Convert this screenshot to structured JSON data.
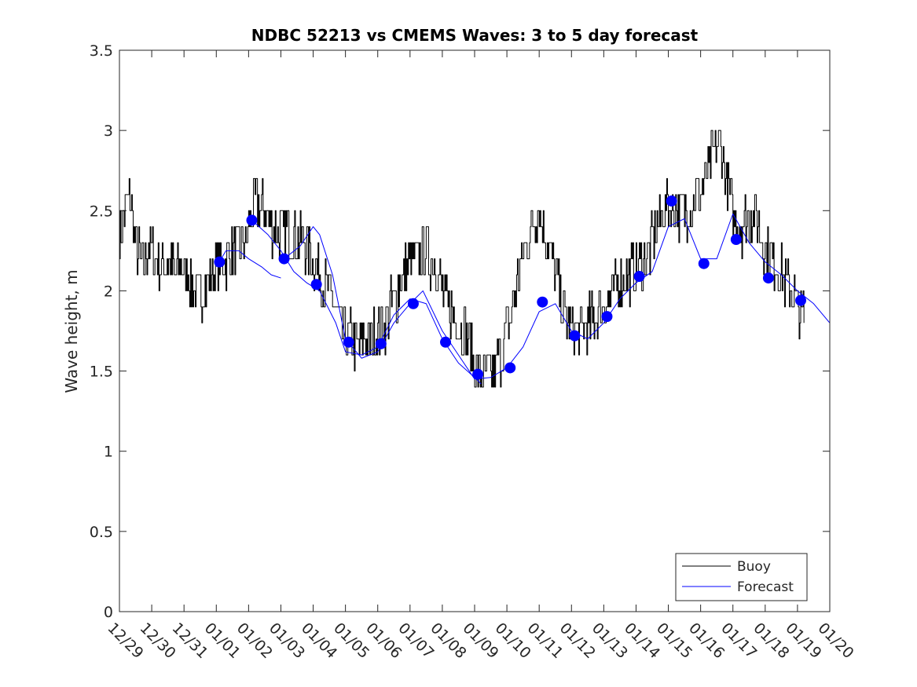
{
  "chart_data": {
    "type": "line",
    "title": "NDBC 52213 vs CMEMS Waves: 3 to 5 day forecast",
    "xlabel": "",
    "ylabel": "Wave height, m",
    "xlim": [
      0,
      22
    ],
    "ylim": [
      0,
      3.5
    ],
    "x_ticks": [
      {
        "x": 0,
        "label": "12/29"
      },
      {
        "x": 1,
        "label": "12/30"
      },
      {
        "x": 2,
        "label": "12/31"
      },
      {
        "x": 3,
        "label": "01/01"
      },
      {
        "x": 4,
        "label": "01/02"
      },
      {
        "x": 5,
        "label": "01/03"
      },
      {
        "x": 6,
        "label": "01/04"
      },
      {
        "x": 7,
        "label": "01/05"
      },
      {
        "x": 8,
        "label": "01/06"
      },
      {
        "x": 9,
        "label": "01/07"
      },
      {
        "x": 10,
        "label": "01/08"
      },
      {
        "x": 11,
        "label": "01/09"
      },
      {
        "x": 12,
        "label": "01/10"
      },
      {
        "x": 13,
        "label": "01/11"
      },
      {
        "x": 14,
        "label": "01/12"
      },
      {
        "x": 15,
        "label": "01/13"
      },
      {
        "x": 16,
        "label": "01/14"
      },
      {
        "x": 17,
        "label": "01/15"
      },
      {
        "x": 18,
        "label": "01/16"
      },
      {
        "x": 19,
        "label": "01/17"
      },
      {
        "x": 20,
        "label": "01/18"
      },
      {
        "x": 21,
        "label": "01/19"
      },
      {
        "x": 22,
        "label": "01/20"
      }
    ],
    "y_ticks": [
      {
        "y": 0,
        "label": "0"
      },
      {
        "y": 0.5,
        "label": "0.5"
      },
      {
        "y": 1,
        "label": "1"
      },
      {
        "y": 1.5,
        "label": "1.5"
      },
      {
        "y": 2,
        "label": "2"
      },
      {
        "y": 2.5,
        "label": "2.5"
      },
      {
        "y": 3,
        "label": "3"
      },
      {
        "y": 3.5,
        "label": "3.5"
      }
    ],
    "legend": {
      "position": "bottom-right",
      "entries": [
        "Buoy",
        "Forecast"
      ]
    },
    "colors": {
      "buoy": "#000000",
      "forecast": "#0000ff",
      "axis": "#262626"
    },
    "series": [
      {
        "name": "Buoy",
        "style": "noisy-step",
        "x": [
          0,
          0.15,
          0.3,
          0.5,
          0.7,
          0.9,
          1.1,
          1.3,
          1.5,
          1.7,
          1.9,
          2.0,
          2.1,
          2.3,
          2.5,
          2.7,
          3.0,
          3.3,
          3.6,
          3.9,
          4.1,
          4.3,
          4.6,
          4.9,
          5.2,
          5.5,
          5.7,
          5.9,
          6.1,
          6.3,
          6.6,
          6.8,
          7.0,
          7.2,
          7.4,
          7.6,
          7.8,
          8.0,
          8.2,
          8.4,
          8.6,
          8.8,
          9.0,
          9.2,
          9.5,
          9.8,
          10.0,
          10.2,
          10.5,
          10.8,
          11.0,
          11.2,
          11.4,
          11.6,
          11.8,
          12.0,
          12.2,
          12.4,
          12.6,
          12.8,
          13.0,
          13.2,
          13.4,
          13.6,
          13.8,
          14.0,
          14.3,
          14.6,
          14.9,
          15.2,
          15.5,
          15.8,
          16.1,
          16.4,
          16.7,
          17.0,
          17.3,
          17.6,
          17.9,
          18.2,
          18.4,
          18.6,
          18.8,
          19.0,
          19.2,
          19.4,
          19.6,
          19.8,
          20.0,
          20.2,
          20.4,
          20.6,
          20.8,
          21.0,
          21.2
        ],
        "values": [
          2.35,
          2.5,
          2.6,
          2.3,
          2.15,
          2.3,
          2.2,
          2.15,
          2.2,
          2.1,
          2.15,
          2.1,
          2.1,
          2.0,
          2.0,
          2.05,
          2.15,
          2.2,
          2.25,
          2.3,
          2.5,
          2.55,
          2.45,
          2.35,
          2.4,
          2.3,
          2.3,
          2.25,
          2.15,
          2.05,
          1.95,
          1.8,
          1.7,
          1.7,
          1.65,
          1.7,
          1.7,
          1.75,
          1.8,
          1.9,
          2.0,
          2.1,
          2.2,
          2.2,
          2.25,
          2.15,
          2.0,
          1.9,
          1.8,
          1.7,
          1.55,
          1.5,
          1.45,
          1.5,
          1.6,
          1.75,
          1.95,
          2.15,
          2.3,
          2.45,
          2.5,
          2.35,
          2.2,
          2.0,
          1.85,
          1.75,
          1.75,
          1.8,
          1.9,
          1.95,
          2.05,
          2.1,
          2.15,
          2.25,
          2.45,
          2.55,
          2.5,
          2.5,
          2.6,
          2.7,
          2.85,
          2.9,
          2.7,
          2.45,
          2.4,
          2.45,
          2.5,
          2.4,
          2.25,
          2.2,
          2.15,
          2.05,
          2.0,
          1.9,
          1.85
        ]
      },
      {
        "name": "Forecast",
        "x": [
          3.0,
          3.3,
          3.7,
          4.0,
          4.4,
          4.7,
          5.0
        ],
        "values": [
          2.15,
          2.25,
          2.25,
          2.2,
          2.15,
          2.1,
          2.08
        ]
      },
      {
        "name": "Forecast",
        "x": [
          4.1,
          4.6,
          5.0,
          5.4,
          5.8,
          6.2,
          6.7,
          7.0,
          7.5,
          8.0,
          8.5,
          9.0,
          9.5,
          10.0,
          10.5,
          11.0,
          11.2
        ],
        "values": [
          2.44,
          2.35,
          2.25,
          2.12,
          2.05,
          2.0,
          1.8,
          1.62,
          1.6,
          1.65,
          1.85,
          1.95,
          1.92,
          1.7,
          1.55,
          1.46,
          1.42
        ]
      },
      {
        "name": "Forecast",
        "x": [
          5.1,
          5.6,
          6.0,
          6.2,
          6.6,
          7.0,
          7.5,
          8.0,
          8.5,
          9.0,
          9.4,
          10.0,
          10.5,
          11.0,
          11.5,
          12.0,
          12.5,
          13.0,
          13.5,
          14.0,
          14.5,
          15.0,
          15.5,
          16.0,
          16.5,
          17.0,
          17.5,
          18.0,
          18.5,
          19.0,
          19.5,
          20.0,
          20.5,
          21.0,
          21.5,
          22.0
        ],
        "values": [
          2.2,
          2.28,
          2.4,
          2.35,
          2.1,
          1.7,
          1.58,
          1.62,
          1.8,
          1.92,
          2.0,
          1.75,
          1.6,
          1.45,
          1.46,
          1.52,
          1.65,
          1.87,
          1.92,
          1.75,
          1.7,
          1.8,
          1.95,
          2.05,
          2.12,
          2.4,
          2.45,
          2.2,
          2.2,
          2.48,
          2.3,
          2.18,
          2.1,
          2.0,
          1.92,
          1.8
        ]
      }
    ],
    "markers": {
      "name": "Forecast points",
      "x": [
        3.1,
        4.1,
        5.1,
        6.1,
        7.1,
        8.1,
        9.1,
        10.1,
        11.1,
        12.1,
        13.1,
        14.1,
        15.1,
        16.1,
        17.1,
        18.1,
        19.1,
        20.1,
        21.1
      ],
      "values": [
        2.18,
        2.44,
        2.2,
        2.04,
        1.68,
        1.67,
        1.92,
        1.68,
        1.48,
        1.52,
        1.93,
        1.72,
        1.84,
        2.09,
        2.56,
        2.17,
        2.32,
        2.08,
        1.94
      ]
    }
  }
}
